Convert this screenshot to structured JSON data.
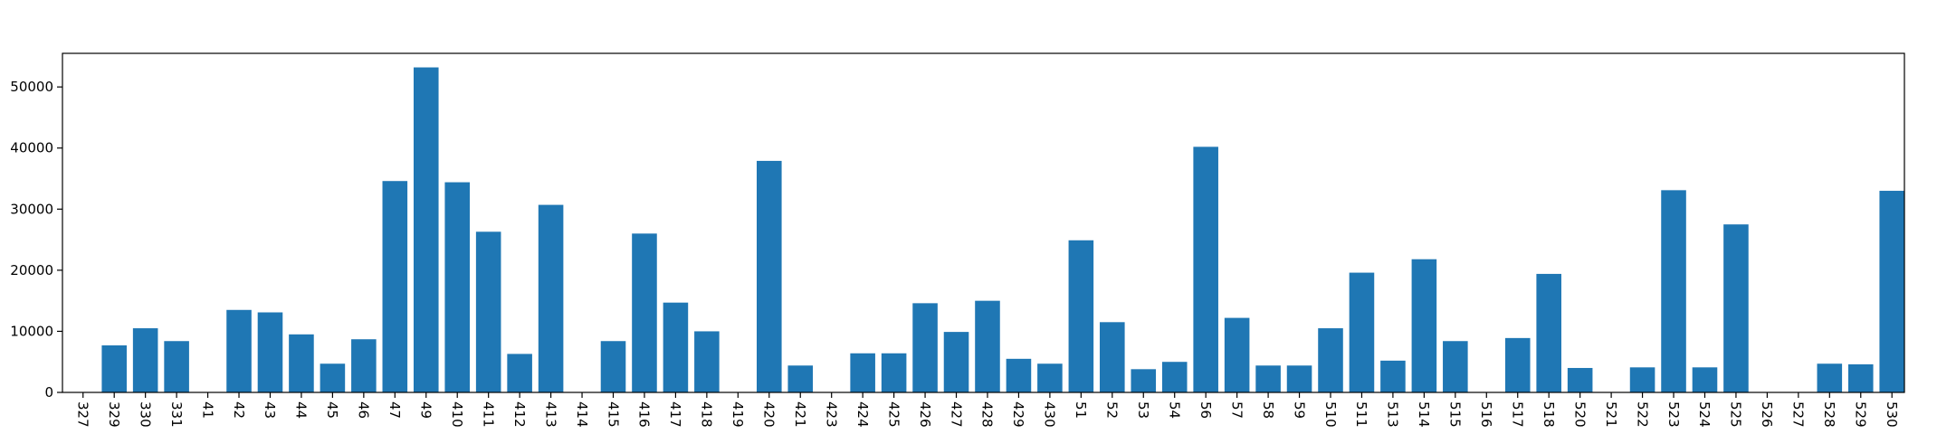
{
  "colors": {
    "bar": "#1f77b4",
    "axis": "#000000",
    "background": "#ffffff"
  },
  "chart_data": {
    "type": "bar",
    "title": "",
    "xlabel": "",
    "ylabel": "",
    "grid": false,
    "ylim": [
      0,
      55500
    ],
    "yticks": [
      0,
      10000,
      20000,
      30000,
      40000,
      50000
    ],
    "categories": [
      "327",
      "329",
      "330",
      "331",
      "41",
      "42",
      "43",
      "44",
      "45",
      "46",
      "47",
      "49",
      "410",
      "411",
      "412",
      "413",
      "414",
      "415",
      "416",
      "417",
      "418",
      "419",
      "420",
      "421",
      "423",
      "424",
      "425",
      "426",
      "427",
      "428",
      "429",
      "430",
      "51",
      "52",
      "53",
      "54",
      "56",
      "57",
      "58",
      "59",
      "510",
      "511",
      "513",
      "514",
      "515",
      "516",
      "517",
      "518",
      "520",
      "521",
      "522",
      "523",
      "524",
      "525",
      "526",
      "527",
      "528",
      "529",
      "530"
    ],
    "values": [
      0,
      7700,
      10500,
      8400,
      0,
      13500,
      13100,
      9500,
      4700,
      8700,
      34600,
      53200,
      34400,
      26300,
      6300,
      30700,
      0,
      8400,
      26000,
      14700,
      10000,
      0,
      37900,
      4400,
      0,
      6400,
      6400,
      14600,
      9900,
      15000,
      5500,
      4700,
      24900,
      11500,
      3800,
      5000,
      40200,
      12200,
      4400,
      4400,
      10500,
      19600,
      5200,
      21800,
      8400,
      0,
      8900,
      19400,
      4000,
      0,
      4100,
      33100,
      4100,
      27500,
      0,
      0,
      4700,
      4600,
      33000
    ]
  }
}
